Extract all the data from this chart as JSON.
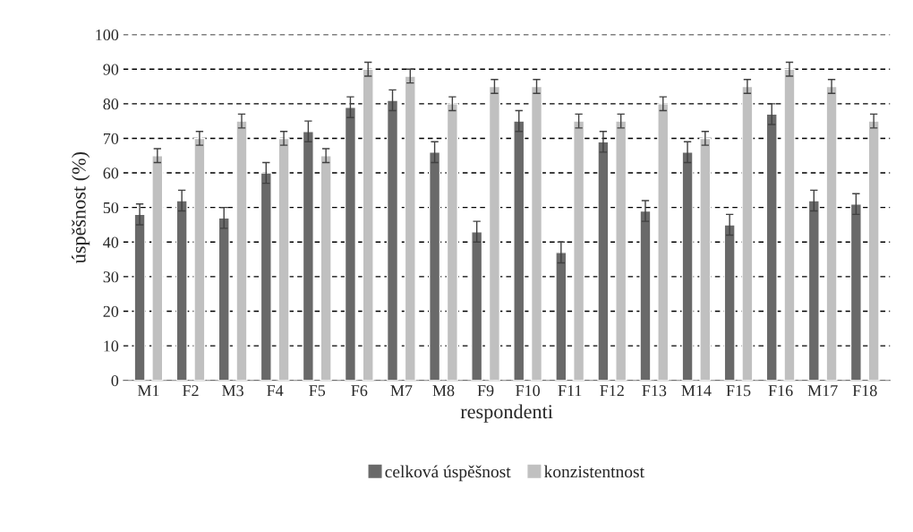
{
  "chart_data": {
    "type": "bar",
    "xlabel": "respondenti",
    "ylabel": "úspěšnost (%)",
    "categories": [
      "M1",
      "F2",
      "M3",
      "F4",
      "F5",
      "F6",
      "M7",
      "M8",
      "F9",
      "F10",
      "F11",
      "F12",
      "F13",
      "M14",
      "F15",
      "F16",
      "M17",
      "F18"
    ],
    "series": [
      {
        "name": "celková úspěšnost",
        "color": "#696969",
        "values": [
          48,
          52,
          47,
          60,
          72,
          79,
          81,
          66,
          43,
          75,
          37,
          69,
          49,
          66,
          45,
          77,
          52,
          51
        ],
        "errors": [
          3,
          3,
          3,
          3,
          3,
          3,
          3,
          3,
          3,
          3,
          3,
          3,
          3,
          3,
          3,
          3,
          3,
          3
        ]
      },
      {
        "name": "konzistentnost",
        "color": "#c0c0c0",
        "values": [
          65,
          70,
          75,
          70,
          65,
          90,
          88,
          80,
          85,
          85,
          75,
          75,
          80,
          70,
          85,
          90,
          85,
          75
        ],
        "errors": [
          2,
          2,
          2,
          2,
          2,
          2,
          2,
          2,
          2,
          2,
          2,
          2,
          2,
          2,
          2,
          2,
          2,
          2
        ]
      }
    ],
    "ylim": [
      0,
      100
    ],
    "yticks": [
      0,
      10,
      20,
      30,
      40,
      50,
      60,
      70,
      80,
      90,
      100
    ],
    "grid": "y",
    "legend": "bottom"
  }
}
